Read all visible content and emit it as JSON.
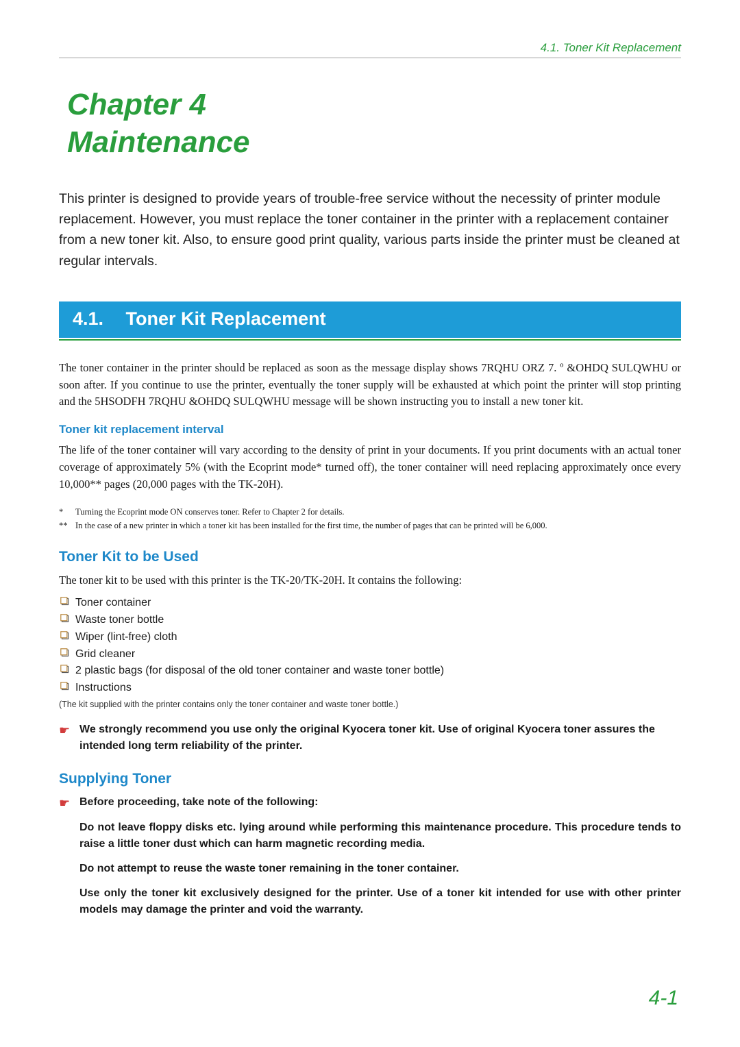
{
  "header": {
    "breadcrumb": "4.1.  Toner Kit Replacement"
  },
  "chapter": {
    "line1": "Chapter 4",
    "line2": "Maintenance"
  },
  "intro": "This printer is designed to provide years of trouble-free service without the necessity of printer module replacement. However, you must replace the toner container in the printer with a replacement container from a new toner kit. Also, to ensure good print quality, various parts inside the printer must be cleaned at regular intervals.",
  "section": {
    "number": "4.1.",
    "title": "Toner Kit Replacement"
  },
  "para1": "The toner container in the printer should be replaced as soon as the message display shows 7RQHU ORZ 7. º  &OHDQ SULQWHU  or soon after. If you continue to use the printer, eventually the toner supply will be exhausted at which point the printer will stop printing and the 5HSODFH 7RQHU  &OHDQ SULQWHU  message will be shown instructing you to install a new toner kit.",
  "interval": {
    "heading": "Toner kit replacement interval",
    "text": "The life of the toner container will vary according to the density of print in your documents. If you print documents with an actual toner coverage of approximately 5% (with the Ecoprint mode* turned off), the toner container will need replacing approximately once every 10,000** pages (20,000 pages with the TK-20H).",
    "foot1_mark": "*",
    "foot1": "Turning the Ecoprint mode ON conserves toner. Refer to Chapter 2 for details.",
    "foot2_mark": "**",
    "foot2": "In the case of a new printer in which a toner kit has been installed for the first time, the number of pages that can be printed will be 6,000."
  },
  "kit": {
    "heading": "Toner Kit to be Used",
    "lead": "The toner kit to be used with this printer is the TK-20/TK-20H. It contains the following:",
    "items": [
      "Toner container",
      "Waste toner bottle",
      "Wiper (lint-free) cloth",
      "Grid cleaner",
      "2 plastic bags (for disposal of the old toner container and waste toner bottle)",
      "Instructions"
    ],
    "note": "(The kit supplied with the printer contains only the toner container and waste toner bottle.)",
    "recommend": "We strongly recommend you use only the original Kyocera toner kit. Use of original Kyocera toner assures the intended long term reliability of the printer."
  },
  "supply": {
    "heading": "Supplying Toner",
    "lead": "Before proceeding, take note of the following:",
    "notes": [
      "Do not leave floppy disks etc. lying around while performing this maintenance procedure. This procedure tends to raise a little toner dust which can harm magnetic recording media.",
      "Do not attempt to reuse the waste toner remaining in the toner container.",
      "Use only the toner kit exclusively designed for the printer. Use of a toner kit intended for use with other printer models may damage the printer and void the warranty."
    ]
  },
  "page_number": "4-1",
  "colors": {
    "accent_green": "#2a9e3d",
    "accent_blue": "#1e9cd7",
    "heading_blue": "#1e88c9",
    "pointer_red": "#d23c3c",
    "bullet_stroke": "#b8863a",
    "bullet_shadow": "#555555"
  }
}
